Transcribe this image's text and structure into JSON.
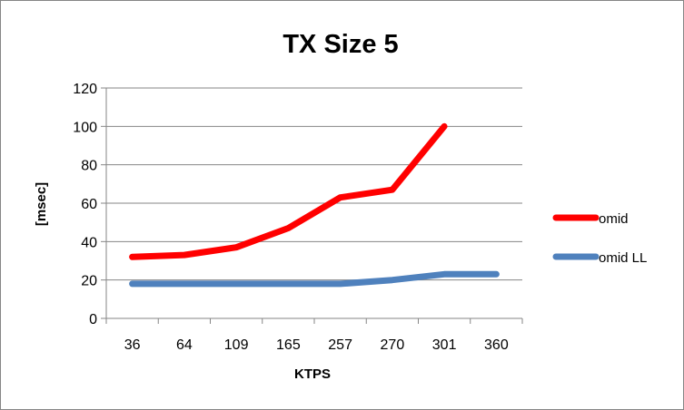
{
  "chart_data": {
    "type": "line",
    "title": "TX Size 5",
    "xlabel": "KTPS",
    "ylabel": "[msec]",
    "categories": [
      "36",
      "64",
      "109",
      "165",
      "257",
      "270",
      "301",
      "360"
    ],
    "ylim": [
      0,
      120
    ],
    "yticks": [
      0,
      20,
      40,
      60,
      80,
      100,
      120
    ],
    "grid": true,
    "legend_position": "right",
    "series": [
      {
        "name": "omid",
        "color": "#ff0000",
        "values": [
          32,
          33,
          37,
          47,
          63,
          67,
          100,
          null
        ]
      },
      {
        "name": "omid LL",
        "color": "#4f81bd",
        "values": [
          18,
          18,
          18,
          18,
          18,
          20,
          23,
          23
        ]
      }
    ]
  }
}
